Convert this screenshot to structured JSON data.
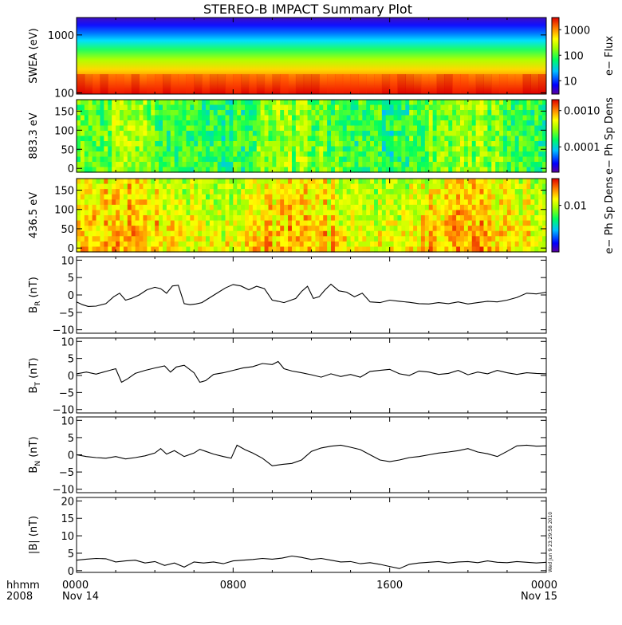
{
  "chart_data": {
    "type": "multi-panel time series",
    "title": "STEREO-B IMPACT Summary Plot",
    "time_axis": {
      "label_top": "hhmm",
      "label_bottom": "2008",
      "range_hours": [
        0,
        24
      ],
      "ticks": [
        {
          "hour": 0,
          "label": "0000",
          "date": "Nov 14"
        },
        {
          "hour": 8,
          "label": "0800",
          "date": ""
        },
        {
          "hour": 16,
          "label": "1600",
          "date": ""
        },
        {
          "hour": 24,
          "label": "0000",
          "date": "Nov 15"
        }
      ]
    },
    "stamp": "Wed Jun  9 23:29:58 2010",
    "spectrograms": [
      {
        "name": "swea",
        "type": "heatmap",
        "ylabel": "SWEA (eV)",
        "ylog": true,
        "ylim": [
          95,
          2000
        ],
        "yticks": [
          100,
          1000
        ],
        "ytick_labels": [
          "100",
          "1000"
        ],
        "colorbar_label": "e− Flux",
        "colorbar_ticks": [
          10,
          100,
          1000
        ],
        "colorbar_tick_labels": [
          "10",
          "100",
          "1000"
        ],
        "colorbar_range": [
          3,
          3000
        ]
      },
      {
        "name": "pad883",
        "type": "heatmap",
        "ylabel": "883.3 eV",
        "ylim": [
          -10,
          180
        ],
        "yticks": [
          0,
          50,
          100,
          150
        ],
        "ytick_labels": [
          "0",
          "50",
          "100",
          "150"
        ],
        "colorbar_label": "e− Ph Sp Dens",
        "colorbar_ticks": [
          0.0001,
          0.001
        ],
        "colorbar_tick_labels": [
          "0.0001",
          "0.0010"
        ],
        "colorbar_range": [
          2e-05,
          0.002
        ]
      },
      {
        "name": "pad436",
        "type": "heatmap",
        "ylabel": "436.5 eV",
        "ylim": [
          -10,
          180
        ],
        "yticks": [
          0,
          50,
          100,
          150
        ],
        "ytick_labels": [
          "0",
          "50",
          "100",
          "150"
        ],
        "colorbar_label": "e− Ph Sp Dens",
        "colorbar_ticks": [
          0.01
        ],
        "colorbar_tick_labels": [
          "0.01"
        ],
        "colorbar_range": [
          0.003,
          0.02
        ]
      }
    ],
    "line_panels": [
      {
        "name": "br",
        "type": "line",
        "ylabel_main": "B",
        "ylabel_sub": "R",
        "ylabel_unit": " (nT)",
        "ylim": [
          -11,
          11
        ],
        "yticks": [
          -10,
          -5,
          0,
          5,
          10
        ],
        "ytick_labels": [
          "−10",
          "−5",
          "0",
          "5",
          "10"
        ],
        "x": [
          0,
          0.3,
          0.6,
          1,
          1.5,
          1.9,
          2.2,
          2.5,
          2.8,
          3.2,
          3.6,
          4,
          4.3,
          4.6,
          4.9,
          5.2,
          5.5,
          5.8,
          6.1,
          6.4,
          6.8,
          7.2,
          7.6,
          8,
          8.4,
          8.8,
          9.2,
          9.6,
          10,
          10.3,
          10.6,
          10.9,
          11.2,
          11.5,
          11.8,
          12.1,
          12.4,
          12.7,
          13,
          13.4,
          13.8,
          14.2,
          14.6,
          15,
          15.5,
          16,
          16.5,
          17,
          17.5,
          18,
          18.5,
          19,
          19.5,
          20,
          20.5,
          21,
          21.5,
          22,
          22.5,
          23,
          23.5,
          24
        ],
        "y": [
          -2,
          -2.8,
          -3.3,
          -3.2,
          -2.5,
          -0.5,
          0.5,
          -1.5,
          -1,
          0,
          1.5,
          2.2,
          1.8,
          0.5,
          2.6,
          2.8,
          -2.5,
          -2.8,
          -2.6,
          -2.2,
          -0.8,
          0.6,
          2,
          3,
          2.6,
          1.5,
          2.5,
          1.8,
          -1.5,
          -1.8,
          -2.2,
          -1.6,
          -1,
          1,
          2.5,
          -1,
          -0.5,
          1.5,
          3.1,
          1.2,
          0.8,
          -0.5,
          0.5,
          -2,
          -2.2,
          -1.5,
          -1.8,
          -2.1,
          -2.5,
          -2.6,
          -2.2,
          -2.5,
          -2,
          -2.6,
          -2.2,
          -1.8,
          -2,
          -1.5,
          -0.7,
          0.5,
          0.3,
          0.8
        ]
      },
      {
        "name": "bt",
        "type": "line",
        "ylabel_main": "B",
        "ylabel_sub": "T",
        "ylabel_unit": " (nT)",
        "ylim": [
          -11,
          11
        ],
        "yticks": [
          -10,
          -5,
          0,
          5,
          10
        ],
        "ytick_labels": [
          "−10",
          "−5",
          "0",
          "5",
          "10"
        ],
        "x": [
          0,
          0.5,
          1,
          1.5,
          2,
          2.3,
          2.6,
          3,
          3.5,
          4,
          4.5,
          4.8,
          5.1,
          5.5,
          6,
          6.3,
          6.6,
          7,
          7.5,
          8,
          8.5,
          9,
          9.5,
          10,
          10.3,
          10.6,
          11,
          11.5,
          12,
          12.5,
          13,
          13.5,
          14,
          14.5,
          15,
          15.5,
          16,
          16.5,
          17,
          17.5,
          18,
          18.5,
          19,
          19.5,
          20,
          20.5,
          21,
          21.5,
          22,
          22.5,
          23,
          23.5,
          24
        ],
        "y": [
          0.5,
          1,
          0.4,
          1.2,
          2,
          -2,
          -1,
          0.6,
          1.5,
          2.2,
          2.8,
          1,
          2.5,
          3,
          0.8,
          -2,
          -1.5,
          0.3,
          0.8,
          1.5,
          2.2,
          2.6,
          3.5,
          3.2,
          4.1,
          2,
          1.3,
          0.8,
          0.2,
          -0.5,
          0.5,
          -0.3,
          0.3,
          -0.5,
          1.2,
          1.5,
          1.8,
          0.5,
          0,
          1.3,
          1,
          0.3,
          0.6,
          1.5,
          0.2,
          1,
          0.5,
          1.5,
          0.8,
          0.3,
          0.8,
          0.6,
          0.5
        ]
      },
      {
        "name": "bn",
        "type": "line",
        "ylabel_main": "B",
        "ylabel_sub": "N",
        "ylabel_unit": " (nT)",
        "ylim": [
          -11,
          11
        ],
        "yticks": [
          -10,
          -5,
          0,
          5,
          10
        ],
        "ytick_labels": [
          "−10",
          "−5",
          "0",
          "5",
          "10"
        ],
        "x": [
          0,
          0.5,
          1,
          1.5,
          2,
          2.5,
          3,
          3.5,
          4,
          4.3,
          4.6,
          5,
          5.5,
          6,
          6.3,
          6.6,
          7,
          7.5,
          7.9,
          8.2,
          8.6,
          9,
          9.5,
          10,
          10.5,
          11,
          11.5,
          12,
          12.5,
          13,
          13.5,
          14,
          14.5,
          15,
          15.5,
          16,
          16.5,
          17,
          17.5,
          18,
          18.5,
          19,
          19.5,
          20,
          20.5,
          21,
          21.5,
          22,
          22.5,
          23,
          23.5,
          24
        ],
        "y": [
          0,
          -0.5,
          -0.8,
          -1,
          -0.5,
          -1.2,
          -0.8,
          -0.3,
          0.5,
          1.8,
          0.2,
          1.2,
          -0.5,
          0.5,
          1.6,
          1,
          0.2,
          -0.5,
          -1,
          2.8,
          1.5,
          0.5,
          -1,
          -3.2,
          -2.8,
          -2.5,
          -1.5,
          1,
          2,
          2.5,
          2.8,
          2.2,
          1.5,
          0,
          -1.5,
          -2,
          -1.5,
          -0.8,
          -0.5,
          0,
          0.5,
          0.8,
          1.2,
          1.8,
          0.8,
          0.3,
          -0.5,
          1,
          2.6,
          2.8,
          2.5,
          2.6
        ]
      },
      {
        "name": "bmag",
        "type": "line",
        "ylabel_main": "|B| (nT)",
        "ylabel_sub": "",
        "ylabel_unit": "",
        "ylim": [
          -0.5,
          21
        ],
        "yticks": [
          0,
          5,
          10,
          15,
          20
        ],
        "ytick_labels": [
          "0",
          "5",
          "10",
          "15",
          "20"
        ],
        "x": [
          0,
          0.5,
          1,
          1.5,
          2,
          2.5,
          3,
          3.5,
          4,
          4.5,
          5,
          5.5,
          6,
          6.5,
          7,
          7.5,
          8,
          8.5,
          9,
          9.5,
          10,
          10.5,
          11,
          11.5,
          12,
          12.5,
          13,
          13.5,
          14,
          14.5,
          15,
          15.5,
          16,
          16.5,
          17,
          17.5,
          18,
          18.5,
          19,
          19.5,
          20,
          20.5,
          21,
          21.5,
          22,
          22.5,
          23,
          23.5,
          24
        ],
        "y": [
          3,
          3.3,
          3.5,
          3.4,
          2.5,
          2.8,
          3,
          2.2,
          2.6,
          1.5,
          2.2,
          1,
          2.5,
          2.2,
          2.5,
          2,
          2.8,
          3,
          3.2,
          3.5,
          3.3,
          3.6,
          4.2,
          3.8,
          3.2,
          3.5,
          3,
          2.5,
          2.6,
          2,
          2.3,
          1.8,
          1.2,
          0.6,
          1.8,
          2.2,
          2.4,
          2.6,
          2.2,
          2.5,
          2.6,
          2.3,
          2.8,
          2.4,
          2.3,
          2.6,
          2.4,
          2.2,
          2.4
        ]
      }
    ]
  }
}
